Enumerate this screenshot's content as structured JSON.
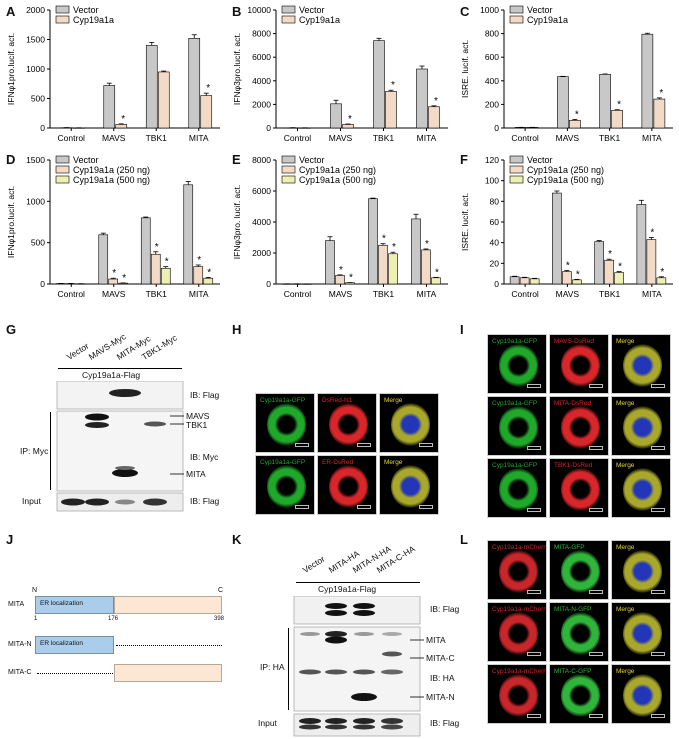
{
  "panels": {
    "A": "A",
    "B": "B",
    "C": "C",
    "D": "D",
    "E": "E",
    "F": "F",
    "G": "G",
    "H": "H",
    "I": "I",
    "J": "J",
    "K": "K",
    "L": "L"
  },
  "chart_data": [
    {
      "type": "bar",
      "categories": [
        "Control",
        "MAVS",
        "TBK1",
        "MITA"
      ],
      "ylabel": "IFNφ1pro.lucif. act.",
      "ylim": [
        0,
        2000
      ],
      "yticks": [
        0,
        500,
        1000,
        1500,
        2000
      ],
      "series": [
        {
          "name": "Vector",
          "color": "#c8c8c8",
          "values": [
            5,
            720,
            1400,
            1520
          ],
          "errors": [
            2,
            40,
            50,
            60
          ]
        },
        {
          "name": "Cyp19a1a",
          "color": "#f3dac6",
          "values": [
            3,
            60,
            950,
            550
          ],
          "errors": [
            1,
            10,
            15,
            40
          ]
        }
      ],
      "stars": [
        "",
        "*",
        "",
        "*"
      ]
    },
    {
      "type": "bar",
      "categories": [
        "Control",
        "MAVS",
        "TBK1",
        "MITA"
      ],
      "ylabel": "IFNφ3pro.lucif. act.",
      "ylim": [
        0,
        10000
      ],
      "yticks": [
        0,
        2000,
        4000,
        6000,
        8000,
        10000
      ],
      "series": [
        {
          "name": "Vector",
          "color": "#c8c8c8",
          "values": [
            20,
            2050,
            7400,
            5000
          ],
          "errors": [
            10,
            300,
            200,
            250
          ]
        },
        {
          "name": "Cyp19a1a",
          "color": "#f3dac6",
          "values": [
            15,
            300,
            3100,
            1800
          ],
          "errors": [
            5,
            40,
            100,
            80
          ]
        }
      ],
      "stars": [
        "",
        "*",
        "*",
        "*"
      ]
    },
    {
      "type": "bar",
      "categories": [
        "Control",
        "MAVS",
        "TBK1",
        "MITA"
      ],
      "ylabel": "ISRE. lucif. act.",
      "ylim": [
        0,
        1000
      ],
      "yticks": [
        0,
        200,
        400,
        600,
        800,
        1000
      ],
      "series": [
        {
          "name": "Vector",
          "color": "#c8c8c8",
          "values": [
            5,
            435,
            455,
            795
          ],
          "errors": [
            1,
            3,
            3,
            8
          ]
        },
        {
          "name": "Cyp19a1a",
          "color": "#f3dac6",
          "values": [
            5,
            65,
            150,
            245
          ],
          "errors": [
            1,
            8,
            5,
            10
          ]
        }
      ],
      "stars": [
        "",
        "*",
        "*",
        "*"
      ]
    },
    {
      "type": "bar",
      "categories": [
        "Control",
        "MAVS",
        "TBK1",
        "MITA"
      ],
      "ylabel": "IFNφ1pro.lucif. act.",
      "ylim": [
        0,
        1500
      ],
      "yticks": [
        0,
        500,
        1000,
        1500
      ],
      "series": [
        {
          "name": "Vector",
          "color": "#c8c8c8",
          "values": [
            5,
            595,
            800,
            1200
          ],
          "errors": [
            2,
            20,
            10,
            40
          ]
        },
        {
          "name": "Cyp19a1a (250 ng)",
          "color": "#f3dac6",
          "values": [
            5,
            60,
            360,
            210
          ],
          "errors": [
            2,
            10,
            30,
            20
          ]
        },
        {
          "name": "Cyp19a1a (500 ng)",
          "color": "#eef0b3",
          "values": [
            3,
            10,
            190,
            70
          ],
          "errors": [
            1,
            3,
            20,
            10
          ]
        }
      ],
      "stars": [
        [
          "",
          "",
          ""
        ],
        [
          "",
          "*",
          "*"
        ],
        [
          "",
          "*",
          "*"
        ],
        [
          "",
          "*",
          "*"
        ]
      ]
    },
    {
      "type": "bar",
      "categories": [
        "Control",
        "MAVS",
        "TBK1",
        "MITA"
      ],
      "ylabel": "IFNφ3pro. lucif. act.",
      "ylim": [
        0,
        8000
      ],
      "yticks": [
        0,
        2000,
        4000,
        6000,
        8000
      ],
      "series": [
        {
          "name": "Vector",
          "color": "#c8c8c8",
          "values": [
            10,
            2800,
            5500,
            4200
          ],
          "errors": [
            5,
            250,
            40,
            300
          ]
        },
        {
          "name": "Cyp19a1a (250 ng)",
          "color": "#f3dac6",
          "values": [
            10,
            550,
            2500,
            2200
          ],
          "errors": [
            5,
            40,
            100,
            60
          ]
        },
        {
          "name": "Cyp19a1a (500 ng)",
          "color": "#eef0b3",
          "values": [
            8,
            80,
            1950,
            400
          ],
          "errors": [
            3,
            10,
            100,
            30
          ]
        }
      ],
      "stars": [
        [
          "",
          "",
          ""
        ],
        [
          "",
          "*",
          "*"
        ],
        [
          "",
          "*",
          "*"
        ],
        [
          "",
          "*",
          "*"
        ]
      ]
    },
    {
      "type": "bar",
      "categories": [
        "Control",
        "MAVS",
        "TBK1",
        "MITA"
      ],
      "ylabel": "ISRE. lucif. act.",
      "ylim": [
        0,
        120
      ],
      "yticks": [
        0,
        20,
        40,
        60,
        80,
        100,
        120
      ],
      "series": [
        {
          "name": "Vector",
          "color": "#c8c8c8",
          "values": [
            7,
            88,
            41,
            77
          ],
          "errors": [
            0.5,
            2,
            1,
            4
          ]
        },
        {
          "name": "Cyp19a1a (250 ng)",
          "color": "#f3dac6",
          "values": [
            6,
            12,
            23,
            43
          ],
          "errors": [
            0.5,
            1,
            1,
            2
          ]
        },
        {
          "name": "Cyp19a1a (500 ng)",
          "color": "#eef0b3",
          "values": [
            5,
            4,
            11,
            6
          ],
          "errors": [
            0.5,
            0.5,
            1,
            1
          ]
        }
      ],
      "stars": [
        [
          "",
          "",
          ""
        ],
        [
          "",
          "*",
          "*"
        ],
        [
          "",
          "*",
          "*"
        ],
        [
          "",
          "*",
          "*"
        ]
      ]
    }
  ],
  "blot_g": {
    "lanes": [
      "Vector",
      "MAVS-Myc",
      "MITA-Myc",
      "TBK1-Myc"
    ],
    "header": "Cyp19a1a-Flag",
    "ib_flag": "IB: Flag",
    "ip_myc": "IP: Myc",
    "mavs": "MAVS",
    "tbk1": "TBK1",
    "ib_myc": "IB: Myc",
    "mita": "MITA",
    "input": "Input",
    "ib_flag_input": "IB: Flag"
  },
  "blot_k": {
    "lanes": [
      "Vector",
      "MITA-HA",
      "MITA-N-HA",
      "MITA-C-HA"
    ],
    "header": "Cyp19a1a-Flag",
    "ib_flag": "IB: Flag",
    "ip_ha": "IP: HA",
    "mita": "MITA",
    "mita_c": "MITA-C",
    "ib_ha": "IB: HA",
    "mita_n": "MITA-N",
    "input": "Input",
    "ib_flag_input": "IB: Flag"
  },
  "diagram_j": {
    "row1_label": "MITA",
    "row2_label": "MITA-N",
    "row3_label": "MITA-C",
    "domain_label": "ER localization",
    "n_term": "N",
    "c_term": "C",
    "pos_start": "1",
    "pos_mid": "176",
    "pos_end": "398",
    "er_color": "#a9cdea",
    "rest_color": "#fbe7d4"
  },
  "micro_h": [
    [
      "Cyp19a1a-GFP",
      "DsRed-N1",
      "Merge"
    ],
    [
      "Cyp19a1a-GFP",
      "ER-DsRed",
      "Merge"
    ]
  ],
  "micro_i": [
    [
      "Cyp19a1a-GFP",
      "MAVS-DsRed",
      "Merge"
    ],
    [
      "Cyp19a1a-GFP",
      "MITA-DsRed",
      "Merge"
    ],
    [
      "Cyp19a1a-GFP",
      "TBK1-DsRed",
      "Merge"
    ]
  ],
  "micro_l": [
    [
      "Cyp19a1a-mCherry",
      "MITA-GFP",
      "Merge"
    ],
    [
      "Cyp19a1a-mCherry",
      "MITA-N-GFP",
      "Merge"
    ],
    [
      "Cyp19a1a-mCherry",
      "MITA-C-GFP",
      "Merge"
    ]
  ]
}
